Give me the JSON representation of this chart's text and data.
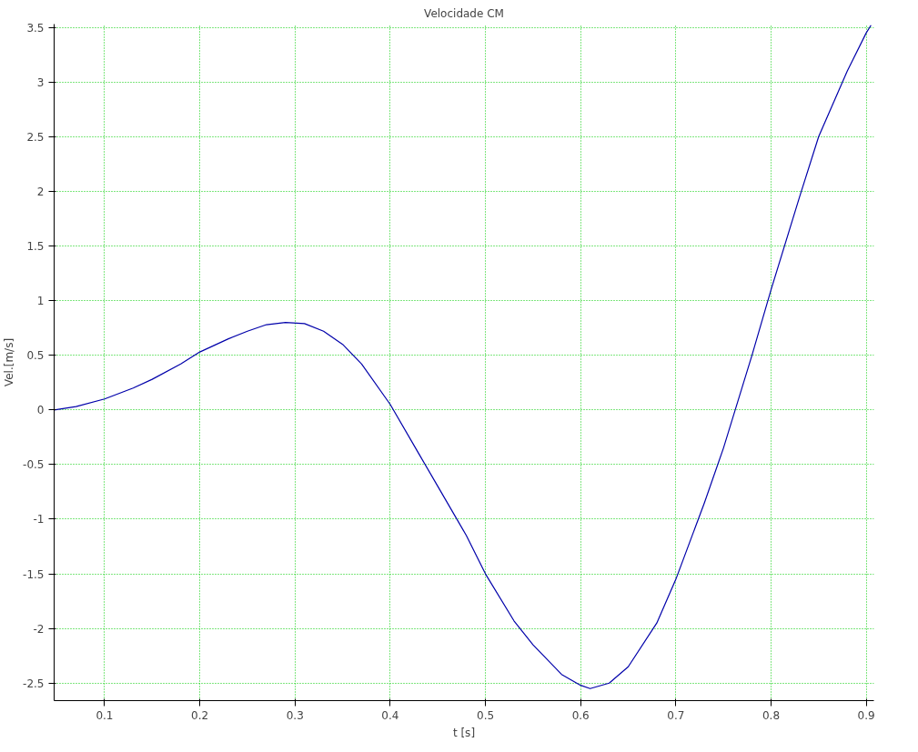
{
  "chart_data": {
    "type": "line",
    "title": "Velocidade CM",
    "xlabel": "t [s]",
    "ylabel": "Vel.[m/s]",
    "x": [
      0.047,
      0.07,
      0.1,
      0.13,
      0.15,
      0.18,
      0.2,
      0.23,
      0.25,
      0.27,
      0.29,
      0.31,
      0.33,
      0.35,
      0.37,
      0.4,
      0.43,
      0.45,
      0.48,
      0.5,
      0.53,
      0.55,
      0.58,
      0.6,
      0.61,
      0.63,
      0.65,
      0.68,
      0.7,
      0.73,
      0.75,
      0.78,
      0.8,
      0.83,
      0.85,
      0.88,
      0.9,
      0.905
    ],
    "series": [
      {
        "color": "#0000aa",
        "values": [
          0.0,
          0.03,
          0.1,
          0.2,
          0.28,
          0.42,
          0.53,
          0.65,
          0.72,
          0.78,
          0.8,
          0.79,
          0.72,
          0.6,
          0.42,
          0.05,
          -0.4,
          -0.7,
          -1.15,
          -1.5,
          -1.93,
          -2.15,
          -2.42,
          -2.52,
          -2.55,
          -2.5,
          -2.35,
          -1.95,
          -1.55,
          -0.85,
          -0.35,
          0.5,
          1.1,
          1.95,
          2.5,
          3.1,
          3.45,
          3.52
        ]
      }
    ],
    "xlim": [
      0.047,
      0.908
    ],
    "ylim": [
      -2.66,
      3.53
    ],
    "xticks": [
      0.1,
      0.2,
      0.3,
      0.4,
      0.5,
      0.6,
      0.7,
      0.8,
      0.9
    ],
    "yticks": [
      -2.5,
      -2,
      -1.5,
      -1,
      -0.5,
      0,
      0.5,
      1,
      1.5,
      2,
      2.5,
      3,
      3.5
    ],
    "grid": true,
    "line_style": "solid",
    "marker": "none"
  }
}
